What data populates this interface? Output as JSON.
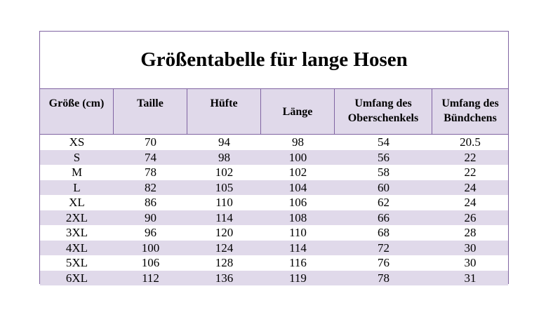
{
  "title": "Größentabelle für lange Hosen",
  "headers": [
    "Größe (cm)",
    "Taille",
    "Hüfte",
    "Länge",
    "Umfang des Oberschenkels",
    "Umfang des Bündchens"
  ],
  "rows": [
    [
      "XS",
      "70",
      "94",
      "98",
      "54",
      "20.5"
    ],
    [
      "S",
      "74",
      "98",
      "100",
      "56",
      "22"
    ],
    [
      "M",
      "78",
      "102",
      "102",
      "58",
      "22"
    ],
    [
      "L",
      "82",
      "105",
      "104",
      "60",
      "24"
    ],
    [
      "XL",
      "86",
      "110",
      "106",
      "62",
      "24"
    ],
    [
      "2XL",
      "90",
      "114",
      "108",
      "66",
      "26"
    ],
    [
      "3XL",
      "96",
      "120",
      "110",
      "68",
      "28"
    ],
    [
      "4XL",
      "100",
      "124",
      "114",
      "72",
      "30"
    ],
    [
      "5XL",
      "106",
      "128",
      "116",
      "76",
      "30"
    ],
    [
      "6XL",
      "112",
      "136",
      "119",
      "78",
      "31"
    ]
  ],
  "colors": {
    "border": "#8064a2",
    "band": "#e0d9ea"
  }
}
